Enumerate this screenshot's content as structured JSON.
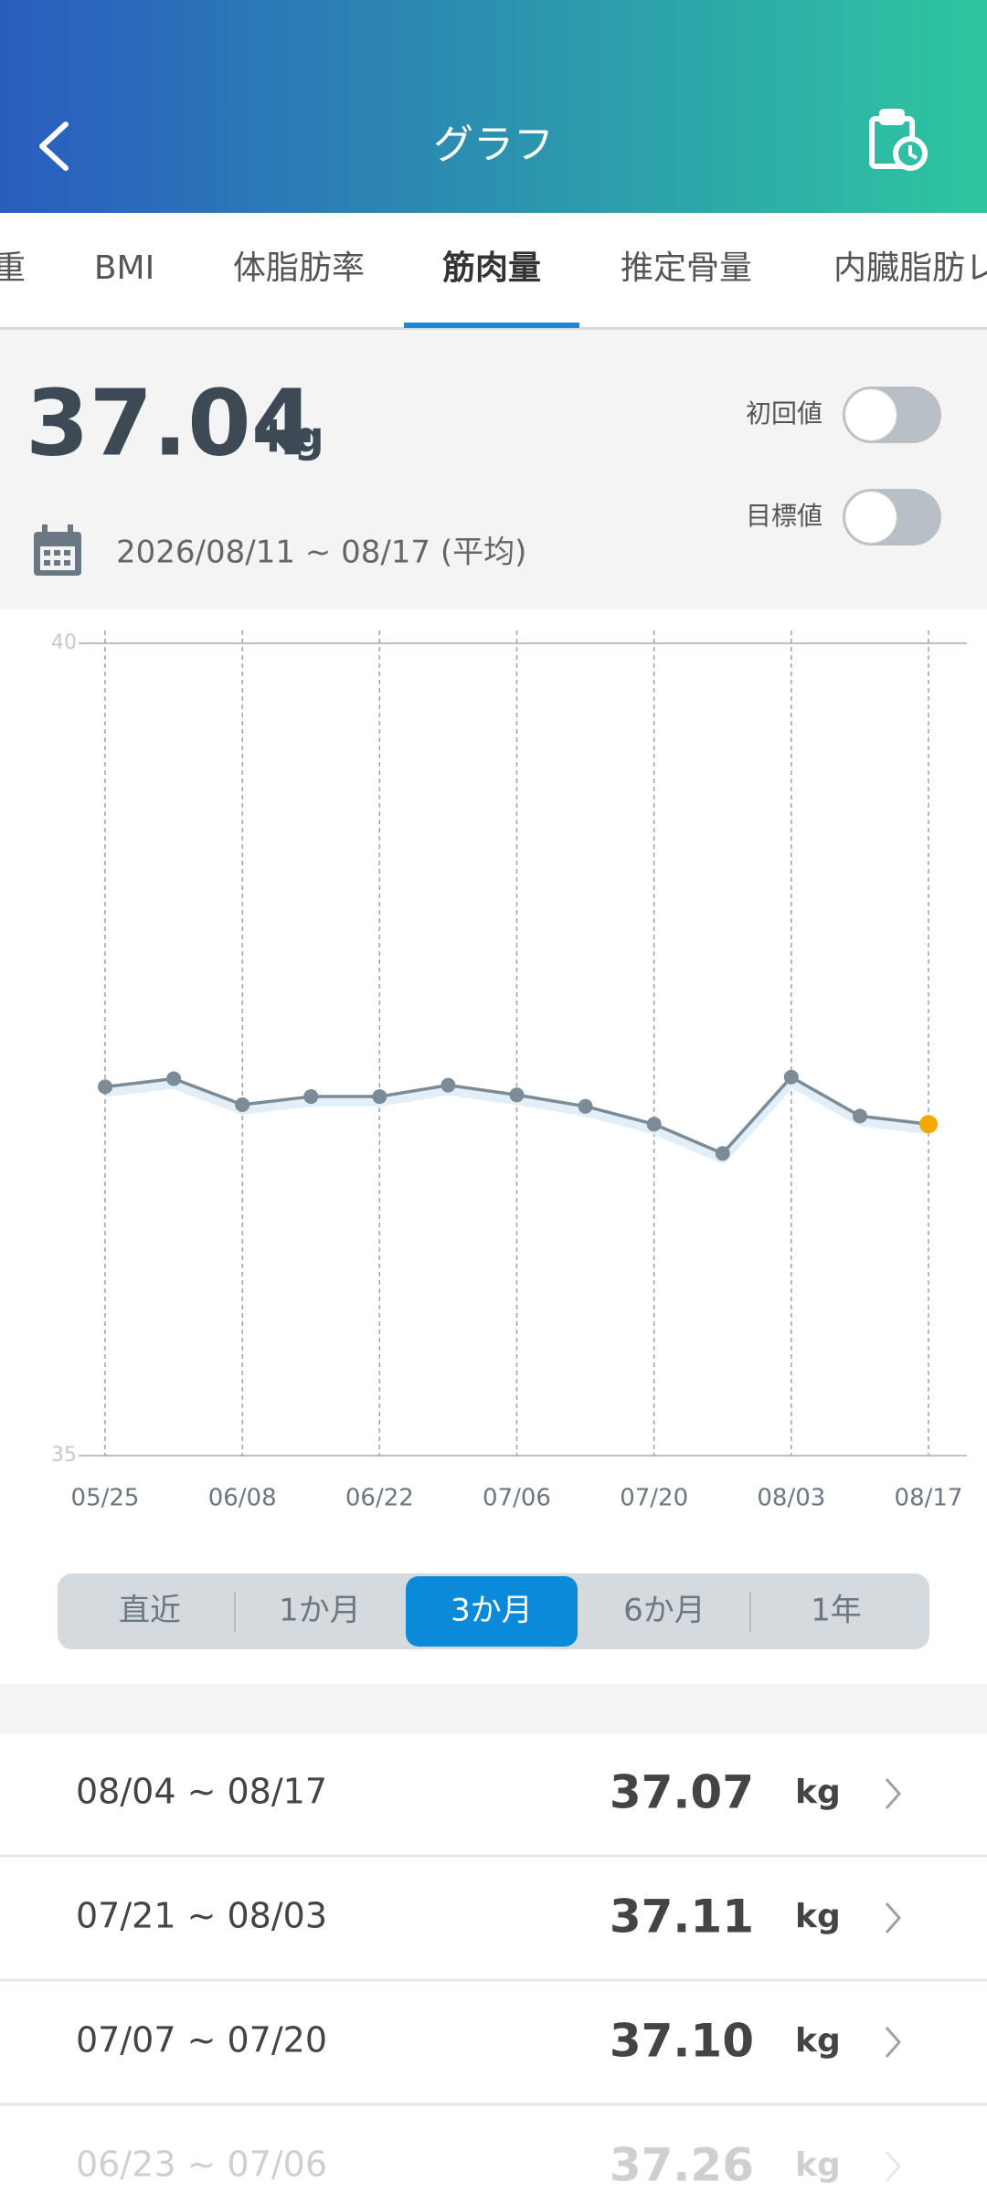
{
  "header": {
    "title": "グラフ"
  },
  "tabs": {
    "items": [
      "重",
      "BMI",
      "体脂肪率",
      "筋肉量",
      "推定骨量",
      "内臓脂肪レ"
    ],
    "selected": 3
  },
  "summary": {
    "value": "37.04",
    "unit": "kg",
    "date_range": "2026/08/11 ~ 08/17 (平均)",
    "toggles": [
      {
        "label": "初回値",
        "on": false
      },
      {
        "label": "目標値",
        "on": false
      }
    ]
  },
  "chart_data": {
    "type": "line",
    "categories": [
      "05/25",
      null,
      "06/08",
      null,
      "06/22",
      null,
      "07/06",
      null,
      "07/20",
      null,
      "08/03",
      null,
      "08/17"
    ],
    "values": [
      37.27,
      37.32,
      37.16,
      37.21,
      37.21,
      37.28,
      37.22,
      37.15,
      37.04,
      36.86,
      37.33,
      37.09,
      37.04
    ],
    "color": "#7b8b97",
    "highlight_color": "#f5a800",
    "ylim": [
      35,
      40
    ],
    "yticks": [
      35,
      40
    ],
    "grid": true
  },
  "periods": {
    "items": [
      "直近",
      "1か月",
      "3か月",
      "6か月",
      "1年"
    ],
    "selected": 2
  },
  "list": {
    "rows": [
      {
        "range": "08/04 ~ 08/17",
        "value": "37.07",
        "unit": "kg"
      },
      {
        "range": "07/21 ~ 08/03",
        "value": "37.11",
        "unit": "kg"
      },
      {
        "range": "07/07 ~ 07/20",
        "value": "37.10",
        "unit": "kg"
      },
      {
        "range": "06/23 ~ 07/06",
        "value": "37.26",
        "unit": "kg"
      }
    ]
  }
}
